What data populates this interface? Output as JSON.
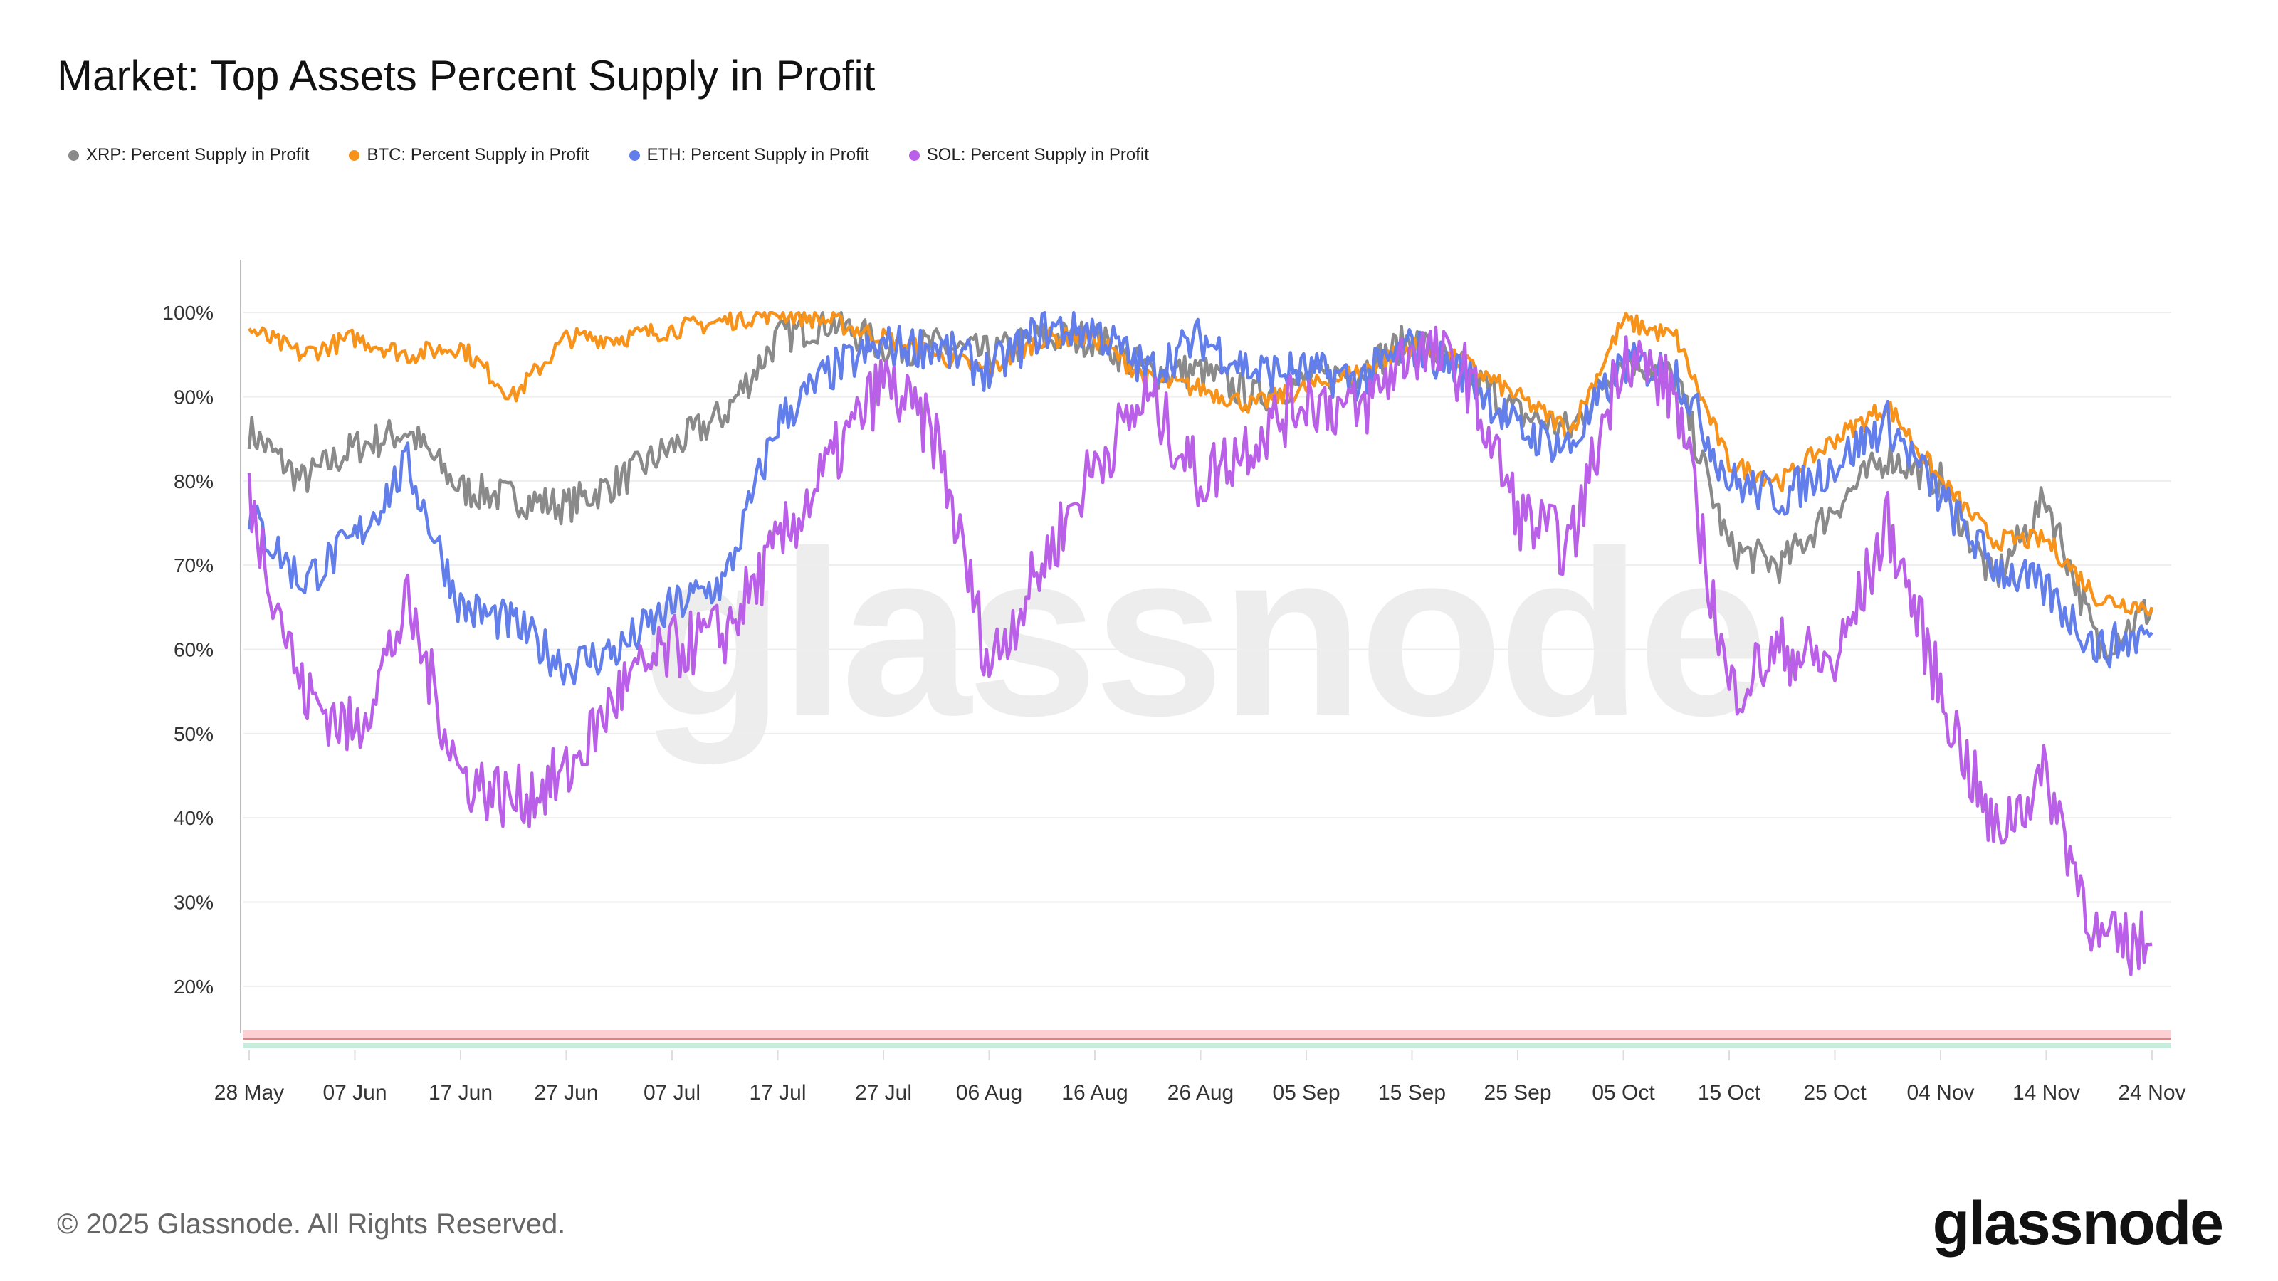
{
  "title": "Market: Top Assets Percent Supply in Profit",
  "footer": "© 2025 Glassnode. All Rights Reserved.",
  "logo": "glassnode",
  "watermark": "glassnode",
  "chart_data": {
    "type": "line",
    "title": "Market: Top Assets Percent Supply in Profit",
    "xlabel": "",
    "ylabel": "",
    "ylim": [
      15,
      105
    ],
    "grid": true,
    "legend_placement": "top-left",
    "y_ticks": [
      "20%",
      "30%",
      "40%",
      "50%",
      "60%",
      "70%",
      "80%",
      "90%",
      "100%"
    ],
    "y_tick_values": [
      20,
      30,
      40,
      50,
      60,
      70,
      80,
      90,
      100
    ],
    "x_ticks": [
      "28 May",
      "07 Jun",
      "17 Jun",
      "27 Jun",
      "07 Jul",
      "17 Jul",
      "27 Jul",
      "06 Aug",
      "16 Aug",
      "26 Aug",
      "05 Sep",
      "15 Sep",
      "25 Sep",
      "05 Oct",
      "15 Oct",
      "25 Oct",
      "04 Nov",
      "14 Nov",
      "24 Nov"
    ],
    "x": [
      "2025-05-28",
      "2025-06-02",
      "2025-06-07",
      "2025-06-12",
      "2025-06-17",
      "2025-06-22",
      "2025-06-27",
      "2025-07-02",
      "2025-07-07",
      "2025-07-12",
      "2025-07-17",
      "2025-07-22",
      "2025-07-27",
      "2025-08-01",
      "2025-08-06",
      "2025-08-11",
      "2025-08-16",
      "2025-08-21",
      "2025-08-26",
      "2025-08-31",
      "2025-09-05",
      "2025-09-10",
      "2025-09-15",
      "2025-09-20",
      "2025-09-25",
      "2025-09-30",
      "2025-10-05",
      "2025-10-10",
      "2025-10-15",
      "2025-10-20",
      "2025-10-25",
      "2025-10-30",
      "2025-11-04",
      "2025-11-09",
      "2025-11-14",
      "2025-11-19",
      "2025-11-24"
    ],
    "series": [
      {
        "name": "XRP: Percent Supply in Profit",
        "color": "#8a8a8a",
        "values": [
          86,
          80,
          84,
          86,
          79,
          78,
          77,
          80,
          84,
          88,
          97,
          99,
          96,
          96,
          95,
          97,
          97,
          93,
          93,
          90,
          92,
          93,
          97,
          93,
          88,
          86,
          95,
          92,
          72,
          70,
          77,
          83,
          80,
          68,
          78,
          60,
          65
        ]
      },
      {
        "name": "BTC: Percent Supply in Profit",
        "color": "#f7931a",
        "values": [
          98,
          95,
          97,
          95,
          96,
          90,
          97,
          97,
          98,
          99,
          100,
          99,
          97,
          95,
          93,
          97,
          97,
          92,
          91,
          89,
          91,
          93,
          96,
          94,
          90,
          86,
          99,
          97,
          82,
          80,
          85,
          89,
          80,
          73,
          73,
          66,
          65
        ]
      },
      {
        "name": "ETH: Percent Supply in Profit",
        "color": "#627eea",
        "values": [
          76,
          68,
          73,
          82,
          65,
          63,
          58,
          60,
          65,
          68,
          87,
          93,
          96,
          96,
          93,
          98,
          98,
          93,
          97,
          93,
          93,
          92,
          96,
          93,
          86,
          84,
          94,
          93,
          80,
          78,
          82,
          87,
          78,
          70,
          67,
          60,
          62
        ]
      },
      {
        "name": "SOL: Percent Supply in Profit",
        "color": "#b95fe8",
        "values": [
          78,
          55,
          50,
          65,
          45,
          42,
          45,
          55,
          60,
          62,
          72,
          82,
          92,
          85,
          58,
          70,
          82,
          90,
          80,
          85,
          90,
          88,
          96,
          93,
          76,
          72,
          96,
          90,
          55,
          60,
          58,
          75,
          55,
          38,
          45,
          25,
          25
        ]
      }
    ]
  }
}
